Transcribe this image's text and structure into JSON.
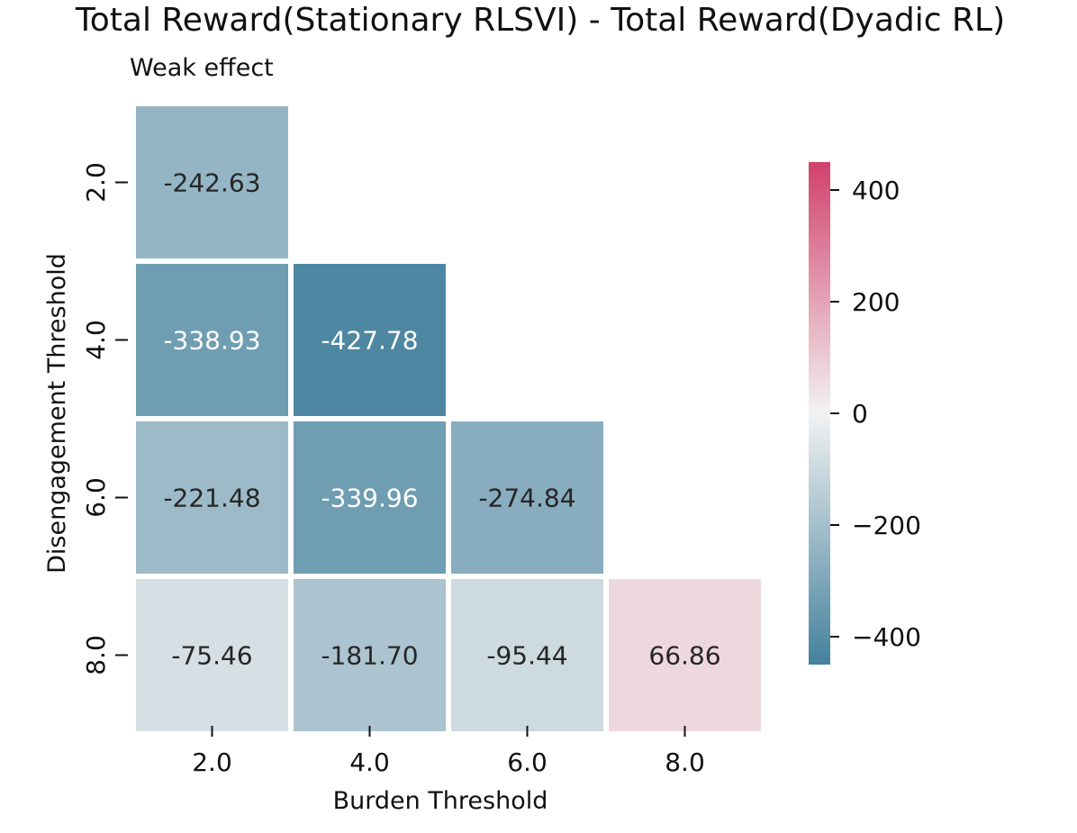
{
  "chart_data": {
    "type": "heatmap",
    "title": "Total Reward(Stationary RLSVI) - Total Reward(Dyadic RL)",
    "subtitle": "Weak effect",
    "xlabel": "Burden Threshold",
    "ylabel": "Disengagement Threshold",
    "x_categories": [
      "2.0",
      "4.0",
      "6.0",
      "8.0"
    ],
    "y_categories": [
      "2.0",
      "4.0",
      "6.0",
      "8.0"
    ],
    "cells": [
      {
        "x": "2.0",
        "y": "2.0",
        "value": -242.63,
        "label": "-242.63"
      },
      {
        "x": "2.0",
        "y": "4.0",
        "value": -338.93,
        "label": "-338.93"
      },
      {
        "x": "4.0",
        "y": "4.0",
        "value": -427.78,
        "label": "-427.78"
      },
      {
        "x": "2.0",
        "y": "6.0",
        "value": -221.48,
        "label": "-221.48"
      },
      {
        "x": "4.0",
        "y": "6.0",
        "value": -339.96,
        "label": "-339.96"
      },
      {
        "x": "6.0",
        "y": "6.0",
        "value": -274.84,
        "label": "-274.84"
      },
      {
        "x": "2.0",
        "y": "8.0",
        "value": -75.46,
        "label": "-75.46"
      },
      {
        "x": "4.0",
        "y": "8.0",
        "value": -181.7,
        "label": "-181.70"
      },
      {
        "x": "6.0",
        "y": "8.0",
        "value": -95.44,
        "label": "-95.44"
      },
      {
        "x": "8.0",
        "y": "8.0",
        "value": 66.86,
        "label": "66.86"
      }
    ],
    "colorbar": {
      "vmin": -450,
      "vmax": 450,
      "ticks": [
        400,
        200,
        0,
        -200,
        -400
      ],
      "tick_labels": [
        "400",
        "200",
        "0",
        "−200",
        "−400"
      ],
      "color_low": "#44819d",
      "color_mid": "#f2f2f2",
      "color_high": "#d2416c"
    },
    "grid": false,
    "mask": "upper triangle (above diagonal) hidden"
  }
}
